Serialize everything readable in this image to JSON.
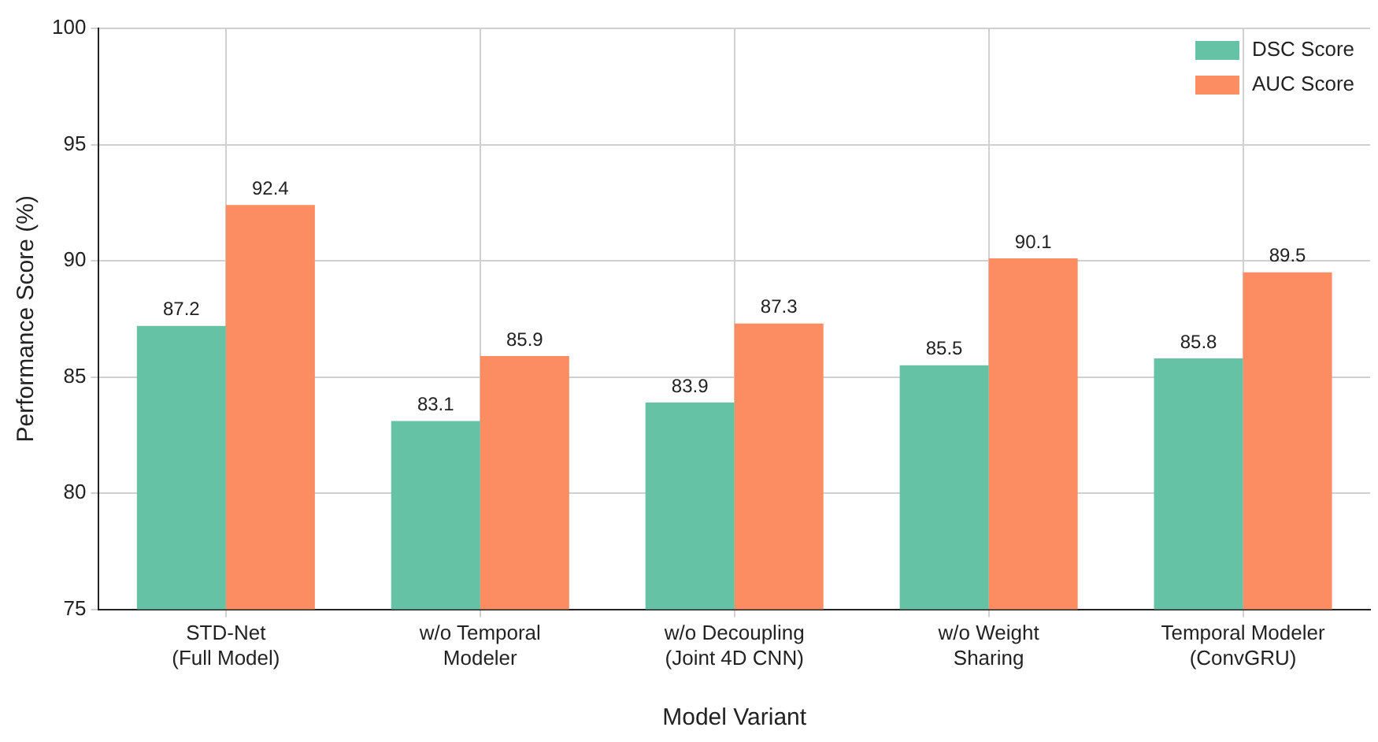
{
  "chart_data": {
    "type": "bar",
    "xlabel": "Model Variant",
    "ylabel": "Performance Score (%)",
    "categories": [
      "STD-Net\n(Full Model)",
      "w/o Temporal\nModeler",
      "w/o Decoupling\n(Joint 4D CNN)",
      "w/o Weight\nSharing",
      "Temporal Modeler\n(ConvGRU)"
    ],
    "series": [
      {
        "name": "DSC Score",
        "color": "#66c2a5",
        "values": [
          87.2,
          83.1,
          83.9,
          85.5,
          85.8
        ]
      },
      {
        "name": "AUC Score",
        "color": "#fc8d62",
        "values": [
          92.4,
          85.9,
          87.3,
          90.1,
          89.5
        ]
      }
    ],
    "ylim": [
      75,
      100
    ],
    "yticks": [
      75,
      80,
      85,
      90,
      95,
      100
    ],
    "grid": true,
    "legend": "top right",
    "data_labels": true
  }
}
